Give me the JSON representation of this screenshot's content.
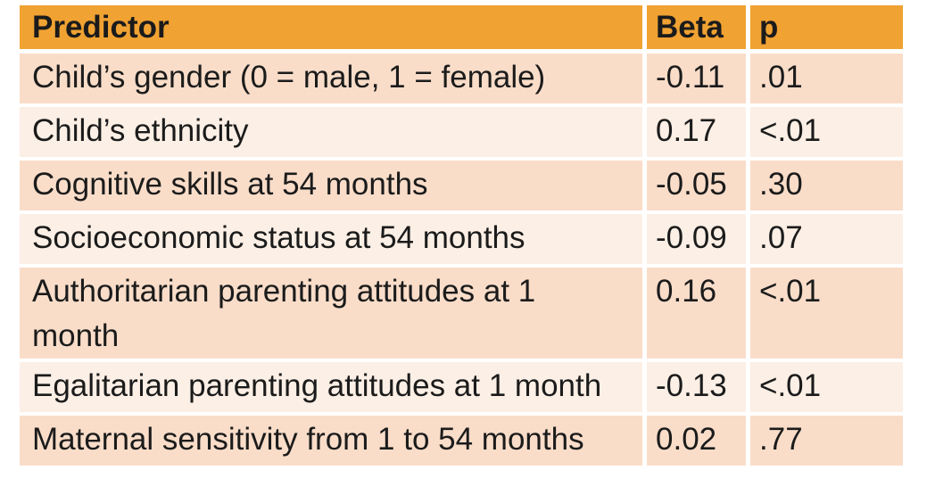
{
  "chart_data": {
    "type": "table",
    "columns": [
      "Predictor",
      "Beta",
      "p"
    ],
    "rows": [
      [
        "Child’s gender (0 = male, 1 = female)",
        "-0.11",
        ".01"
      ],
      [
        "Child’s ethnicity",
        "0.17",
        "<.01"
      ],
      [
        "Cognitive skills at 54 months",
        "-0.05",
        ".30"
      ],
      [
        "Socioeconomic status at 54 months",
        "-0.09",
        ".07"
      ],
      [
        "Authoritarian parenting attitudes at 1 month",
        "0.16",
        "<.01"
      ],
      [
        "Egalitarian parenting attitudes at 1 month",
        "-0.13",
        "<.01"
      ],
      [
        "Maternal sensitivity from 1 to 54 months",
        "0.02",
        ".77"
      ]
    ],
    "layout": {
      "header_position": "top",
      "grid": "white gaps between cells",
      "row_striping": "alternating dark/light peach starting dark"
    }
  },
  "colors": {
    "header_bg": "#F0A232",
    "row_dark_bg": "#F9DDC9",
    "row_light_bg": "#FCEFE5",
    "gap": "#FFFFFF",
    "text": "#1B1B1B"
  }
}
